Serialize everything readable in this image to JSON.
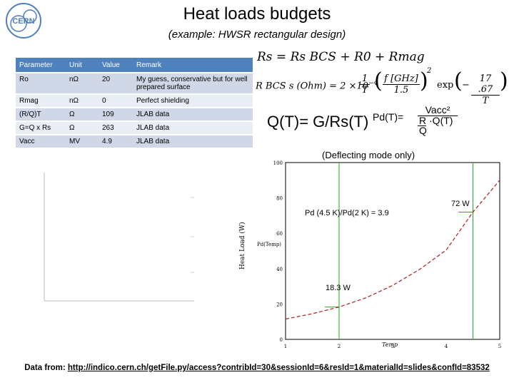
{
  "header": {
    "logo_text": "CERN",
    "title": "Heat loads budgets",
    "subtitle": "(example: HWSR rectangular design)"
  },
  "table": {
    "columns": [
      "Parameter",
      "Unit",
      "Value",
      "Remark"
    ],
    "rows": [
      {
        "param": "Ro",
        "unit": "nΩ",
        "value": "20",
        "remark": "My guess, conservative but for well prepared surface"
      },
      {
        "param": "Rmag",
        "unit": "nΩ",
        "value": "0",
        "remark": "Perfect shielding"
      },
      {
        "param": "(R/Q)T",
        "unit": "Ω",
        "value": "109",
        "remark": "JLAB data"
      },
      {
        "param": "G=Q x Rs",
        "unit": "Ω",
        "value": "263",
        "remark": "JLAB data"
      },
      {
        "param": "Vacc",
        "unit": "MV",
        "value": "4.9",
        "remark": "JLAB data"
      }
    ]
  },
  "formulas": {
    "rs": "Rs = Rs BCS + R0 + Rmag",
    "bcs_lhs": "R BCS s (Ohm) = 2 ×10",
    "bcs_exp": "−4",
    "bcs_f": "f [GHz]",
    "bcs_fden": "1.5",
    "bcs_num": "1",
    "bcs_T": "T",
    "bcs_pow": "2",
    "bcs_expword": "exp",
    "bcs_num2": "17 .67",
    "qt": "Q(T)= G/Rs(T)",
    "pd_lhs": "Pd(T)=",
    "pd_num": "Vacc²",
    "pd_den_r": "R",
    "pd_den_q": "Q",
    "pd_den_qt": "·Q(T)"
  },
  "annotations": {
    "mode": "(Deflecting mode only)",
    "ratio": "Pd (4.5 K)/Pd(2 K) = 3.9",
    "high_value": "72 W",
    "low_value": "18.3 W"
  },
  "footer": {
    "label": "Data from: ",
    "link": "http://indico.cern.ch/getFile.py/access?contribId=30&sessionId=6&resId=1&materialId=slides&confId=83532"
  },
  "chart_data": [
    {
      "type": "line",
      "title": "",
      "xlabel": "Temp",
      "ylabel": "Heat Load (W)",
      "xlim": [
        1,
        5
      ],
      "ylim": [
        0,
        100
      ],
      "x_ticks": [
        "1",
        "2",
        "3",
        "4",
        "5"
      ],
      "y_ticks": [
        "100",
        "80",
        "60",
        "40",
        "20",
        "0"
      ],
      "legend_label": "Pd(Temp)",
      "series": [
        {
          "x": [
            1.0,
            1.5,
            2.0,
            2.5,
            3.0,
            3.5,
            4.0,
            4.5,
            5.0
          ],
          "values": [
            11.5,
            14.5,
            18.3,
            23.5,
            30.5,
            39.5,
            50.5,
            72.0,
            90.0
          ]
        }
      ],
      "markers": [
        {
          "x": 2.0,
          "y": 18.3,
          "label": "18.3 W"
        },
        {
          "x": 4.5,
          "y": 72.0,
          "label": "72 W"
        }
      ],
      "grid": false
    }
  ]
}
